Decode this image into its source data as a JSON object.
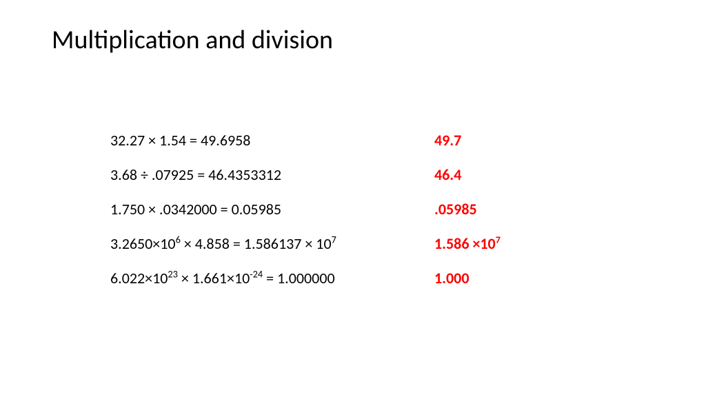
{
  "title": "Multiplication and division",
  "text_color": "#000000",
  "answer_color": "#ff0000",
  "background_color": "#ffffff",
  "title_fontsize": 38,
  "body_fontsize": 22,
  "rows": [
    {
      "eq_pre": "32.27 × 1.54 = 49.6958",
      "eq_sup1": "",
      "eq_mid": "",
      "eq_sup2": "",
      "eq_post": "",
      "ans_pre": "49.7",
      "ans_sup": "",
      "ans_post": ""
    },
    {
      "eq_pre": "3.68 ÷ .07925 = 46.4353312",
      "eq_sup1": "",
      "eq_mid": "",
      "eq_sup2": "",
      "eq_post": "",
      "ans_pre": "46.4",
      "ans_sup": "",
      "ans_post": ""
    },
    {
      "eq_pre": "1.750 × .0342000 = 0.05985",
      "eq_sup1": "",
      "eq_mid": "",
      "eq_sup2": "",
      "eq_post": "",
      "ans_pre": ".05985",
      "ans_sup": "",
      "ans_post": ""
    },
    {
      "eq_pre": "3.2650×10",
      "eq_sup1": "6",
      "eq_mid": " × 4.858 = 1.586137 × 10",
      "eq_sup2": "7",
      "eq_post": "",
      "ans_pre": "1.586 ×10",
      "ans_sup": "7",
      "ans_post": ""
    },
    {
      "eq_pre": "6.022×10",
      "eq_sup1": "23",
      "eq_mid": " × 1.661×10",
      "eq_sup2": "-24",
      "eq_post": " = 1.000000",
      "ans_pre": "1.000",
      "ans_sup": "",
      "ans_post": ""
    }
  ]
}
